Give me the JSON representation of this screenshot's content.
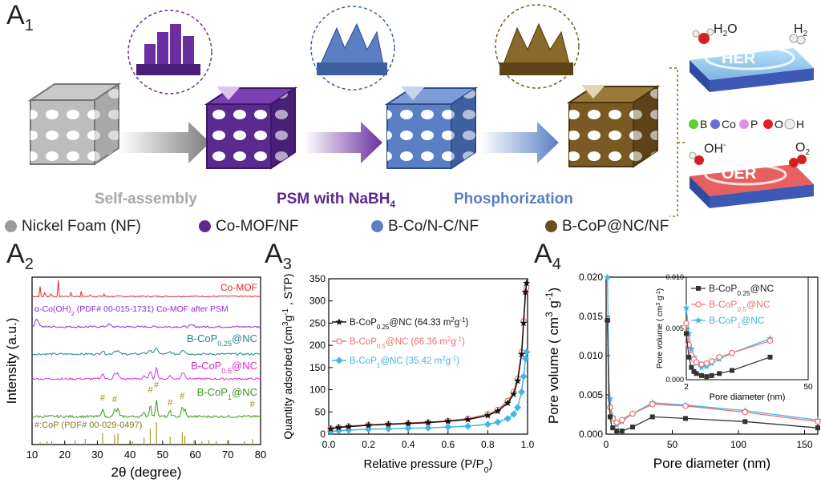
{
  "panels": {
    "a1": {
      "letter": "A",
      "num": "1"
    },
    "a2": {
      "letter": "A",
      "num": "2"
    },
    "a3": {
      "letter": "A",
      "num": "3"
    },
    "a4": {
      "letter": "A",
      "num": "4"
    }
  },
  "scheme": {
    "step1": "Self-assembly",
    "step2": "PSM with NaBH",
    "step2_sub": "4",
    "step3": "Phosphorization",
    "her": "HER",
    "oer": "OER",
    "h2o": "H",
    "h2o_sub": "2",
    "h2o_tail": "O",
    "h2": "H",
    "h2_sub": "2",
    "oh": "OH",
    "oh_sup": "-",
    "o2": "O",
    "o2_sub": "2",
    "elements": [
      "B",
      "Co",
      "P",
      "O",
      "H"
    ],
    "colors": {
      "grey": "#9a9a9a",
      "purple": "#5b2a8e",
      "blue": "#5a7fc4",
      "brown": "#7a5a22"
    }
  },
  "legend": [
    {
      "label": "Nickel Foam (NF)",
      "color": "#9a9a9a"
    },
    {
      "label": "Co-MOF/NF",
      "color": "#5b2a8e"
    },
    {
      "label": "B-Co/N-C/NF",
      "color": "#5a7fc4"
    },
    {
      "label": "B-CoP@NC/NF",
      "color": "#6e4d1c"
    }
  ],
  "chart_data": [
    {
      "type": "line",
      "panel": "A2",
      "xlabel": "2θ (degree)",
      "ylabel": "Intensity (a.u.)",
      "xlim": [
        10,
        80
      ],
      "xticks": [
        10,
        20,
        30,
        40,
        50,
        60,
        70,
        80
      ],
      "series": [
        {
          "name": "Co-MOF",
          "color": "#e32b2b"
        },
        {
          "name": "α-Co(OH)2 (PDF# 00-015-1731) Co-MOF after PSM",
          "color": "#8a2be2"
        },
        {
          "name": "B-CoP0.25@NC",
          "color": "#1a8a86"
        },
        {
          "name": "B-CoP0.5@NC",
          "color": "#d92ed9"
        },
        {
          "name": "B-CoP1@NC",
          "color": "#3c9a1a"
        },
        {
          "name": "#:CoP (PDF# 00-029-0497)",
          "color": "#a89a2a"
        }
      ],
      "labels": {
        "comof": "Co-MOF",
        "cooh": "α-Co(OH)",
        "cooh_sub": "2",
        "cooh_tail": " (PDF# 00-015-1731) Co-MOF after PSM",
        "s1": "B-CoP",
        "s1_sub": "0.25",
        "s1_tail": "@NC",
        "s2": "B-CoP",
        "s2_sub": "0.5",
        "s2_tail": "@NC",
        "s3": "B-CoP",
        "s3_sub": "1",
        "s3_tail": "@NC",
        "ref": "#:CoP (PDF# 00-029-0497)",
        "hash": "#"
      },
      "ref_peaks": [
        [
          31.6,
          0.5
        ],
        [
          35.3,
          0.45
        ],
        [
          36.3,
          0.5
        ],
        [
          46.2,
          0.7
        ],
        [
          48.1,
          1.0
        ],
        [
          52.3,
          0.35
        ],
        [
          56.0,
          0.55
        ],
        [
          56.8,
          0.4
        ],
        [
          23.2,
          0.2
        ],
        [
          26.3,
          0.25
        ],
        [
          59.6,
          0.2
        ],
        [
          62.0,
          0.15
        ],
        [
          64.2,
          0.2
        ],
        [
          66.4,
          0.15
        ],
        [
          70.2,
          0.2
        ],
        [
          75.0,
          0.15
        ],
        [
          77.5,
          0.25
        ],
        [
          40.8,
          0.15
        ],
        [
          44.3,
          0.3
        ],
        [
          14.6,
          0.15
        ],
        [
          16.0,
          0.15
        ],
        [
          12.5,
          0.1
        ]
      ],
      "comof_peaks": [
        [
          12.5,
          0.6
        ],
        [
          14.0,
          0.5
        ],
        [
          15.8,
          0.45
        ],
        [
          18.0,
          1.0
        ],
        [
          22.0,
          0.35
        ],
        [
          25.0,
          0.3
        ],
        [
          28.0,
          0.2
        ],
        [
          32.0,
          0.15
        ]
      ],
      "cp_peaks": [
        31.6,
        35.3,
        46.2,
        48.1,
        52.3,
        56.0,
        77.5
      ]
    },
    {
      "type": "line",
      "panel": "A3",
      "xlabel": "Relative pressure (P/P",
      "xlabel_sub": "0",
      "xlabel_tail": ")",
      "ylabel": "Quantity adsorbed (cm",
      "ylabel_sup": "3",
      "ylabel_mid": "g",
      "ylabel_sup2": "-1",
      "ylabel_tail": " , STP)",
      "xlim": [
        0.0,
        1.0
      ],
      "ylim": [
        0,
        350
      ],
      "xticks": [
        "0.0",
        "0.2",
        "0.4",
        "0.6",
        "0.8",
        "1.0"
      ],
      "yticks": [
        "0",
        "50",
        "100",
        "150",
        "200",
        "250",
        "300",
        "350"
      ],
      "series": [
        {
          "name": "B-CoP0.25@NC (64.33 m2g-1)",
          "label": "B-CoP",
          "sub": "0.25",
          "tail": "@NC (64.33 m",
          "sup": "2",
          "tail2": "g",
          "sup2": "-1",
          "end": ")",
          "color": "#111111",
          "marker": "star",
          "x": [
            0.01,
            0.05,
            0.1,
            0.2,
            0.3,
            0.4,
            0.5,
            0.6,
            0.7,
            0.8,
            0.85,
            0.9,
            0.93,
            0.95,
            0.97,
            0.98,
            0.99,
            0.995
          ],
          "y": [
            12,
            15,
            17,
            20,
            22,
            24,
            26,
            29,
            33,
            42,
            52,
            70,
            90,
            120,
            180,
            250,
            320,
            340
          ]
        },
        {
          "name": "B-CoP0.5@NC (66.36 m2g-1)",
          "label": "B-CoP",
          "sub": "0.5",
          "tail": "@NC (66.36 m",
          "sup": "2",
          "tail2": "g",
          "sup2": "-1",
          "end": ")",
          "color": "#ef7070",
          "marker": "circle",
          "x": [
            0.01,
            0.05,
            0.1,
            0.2,
            0.3,
            0.4,
            0.5,
            0.6,
            0.7,
            0.8,
            0.85,
            0.9,
            0.93,
            0.95,
            0.97,
            0.98,
            0.99,
            0.995
          ],
          "y": [
            13,
            16,
            18,
            21,
            23,
            25,
            27,
            30,
            35,
            45,
            55,
            75,
            95,
            125,
            185,
            255,
            320,
            330
          ]
        },
        {
          "name": "B-CoP1@NC (35.42 m2g-1)",
          "label": "B-CoP",
          "sub": "1",
          "tail": "@NC (35.42 m",
          "sup": "2",
          "tail2": "g",
          "sup2": "-1",
          "end": ")",
          "color": "#41b6e6",
          "marker": "diamond",
          "x": [
            0.01,
            0.05,
            0.1,
            0.2,
            0.3,
            0.4,
            0.5,
            0.6,
            0.7,
            0.8,
            0.85,
            0.9,
            0.93,
            0.95,
            0.97,
            0.98,
            0.99,
            0.995
          ],
          "y": [
            6,
            8,
            9,
            11,
            12,
            13,
            14,
            16,
            18,
            22,
            27,
            35,
            45,
            60,
            95,
            130,
            170,
            185
          ]
        }
      ]
    },
    {
      "type": "line",
      "panel": "A4",
      "xlabel": "Pore diameter (nm)",
      "ylabel": "Pore volume ( cm",
      "ylabel_sup": "3",
      "ylabel_mid": " g",
      "ylabel_sup2": "-1",
      "ylabel_tail": ")",
      "xlim": [
        0,
        160
      ],
      "ylim": [
        0.0,
        0.02
      ],
      "xticks": [
        "0",
        "50",
        "100",
        "150"
      ],
      "yticks": [
        "0.000",
        "0.005",
        "0.010",
        "0.015",
        "0.020"
      ],
      "series": [
        {
          "label": "B-CoP",
          "sub": "0.25",
          "tail": "@NC",
          "color": "#333333",
          "marker": "square",
          "x": [
            1,
            2,
            3,
            4,
            5,
            6,
            8,
            10,
            12,
            15,
            20,
            35,
            60,
            105,
            160
          ],
          "y": [
            0.0145,
            0.0045,
            0.0022,
            0.0012,
            0.0008,
            0.0006,
            0.0004,
            0.0003,
            0.0004,
            0.0006,
            0.0009,
            0.0022,
            0.002,
            0.0016,
            0.0008
          ]
        },
        {
          "label": "B-CoP",
          "sub": "0.5",
          "tail": "@NC",
          "color": "#ef7070",
          "marker": "circle",
          "x": [
            1,
            2,
            3,
            4,
            5,
            6,
            8,
            10,
            12,
            15,
            20,
            35,
            60,
            105,
            160
          ],
          "y": [
            0.0145,
            0.0055,
            0.0034,
            0.0024,
            0.002,
            0.0017,
            0.0015,
            0.0016,
            0.0018,
            0.0022,
            0.0026,
            0.0038,
            0.0036,
            0.0028,
            0.0016
          ]
        },
        {
          "label": "B-CoP",
          "sub": "1",
          "tail": "@NC",
          "color": "#41b6e6",
          "marker": "star",
          "x": [
            1,
            2,
            3,
            4,
            5,
            6,
            8,
            10,
            12,
            15,
            20,
            35,
            60,
            105,
            160
          ],
          "y": [
            0.02,
            0.007,
            0.0045,
            0.003,
            0.0022,
            0.0016,
            0.0012,
            0.0013,
            0.0016,
            0.002,
            0.0026,
            0.004,
            0.0037,
            0.003,
            0.0018
          ]
        }
      ],
      "inset": {
        "xlabel": "Pore diameter (nm)",
        "ylabel": "Pore volume ( cm",
        "ylabel_sup": "3",
        "ylabel_mid": " g",
        "ylabel_sup2": "-1",
        "ylabel_tail": ")",
        "xlim": [
          2,
          50
        ],
        "ylim": [
          0.0,
          0.01
        ],
        "xticks": [
          "2",
          "50"
        ],
        "yticks": [
          "0.000",
          "0.005",
          "0.010"
        ]
      }
    }
  ]
}
